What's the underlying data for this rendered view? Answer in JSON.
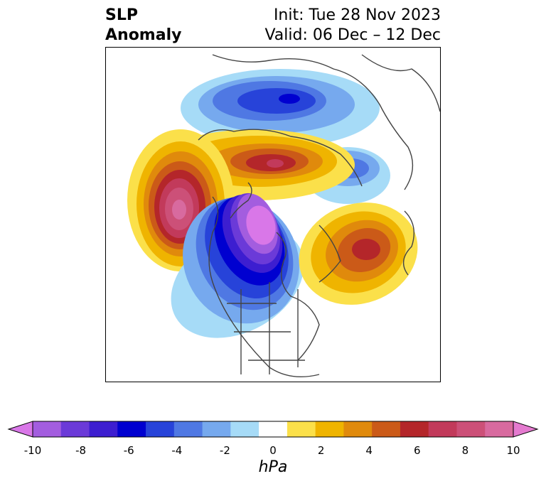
{
  "title": {
    "left_line1": "SLP",
    "left_line2": "Anomaly",
    "init": "Init: Tue 28 Nov 2023",
    "valid": "Valid: 06 Dec – 12 Dec"
  },
  "colorbar": {
    "label": "hPa",
    "ticks": [
      "-10",
      "-8",
      "-6",
      "-4",
      "-2",
      "0",
      "2",
      "4",
      "6",
      "8",
      "10"
    ],
    "colors": [
      "#d977e8",
      "#a35ddf",
      "#6b3ad8",
      "#3d1ed0",
      "#0000d0",
      "#2743d9",
      "#4f78e3",
      "#76a9ee",
      "#a6dbf7",
      "#ffffff",
      "#fbe04a",
      "#efb400",
      "#e08a0c",
      "#cb5a18",
      "#b4262a",
      "#c23a5b",
      "#cc5078",
      "#d86a9f",
      "#e47acf"
    ]
  },
  "map": {
    "features": [
      {
        "name": "low-anomaly-eurasia",
        "sign": "negative",
        "peak": -6
      },
      {
        "name": "high-anomaly-siberia",
        "sign": "positive",
        "peak": 6
      },
      {
        "name": "high-anomaly-pacific",
        "sign": "positive",
        "peak": 8
      },
      {
        "name": "low-anomaly-canada",
        "sign": "negative",
        "peak": -10
      },
      {
        "name": "high-anomaly-atlantic",
        "sign": "positive",
        "peak": 6
      }
    ]
  }
}
